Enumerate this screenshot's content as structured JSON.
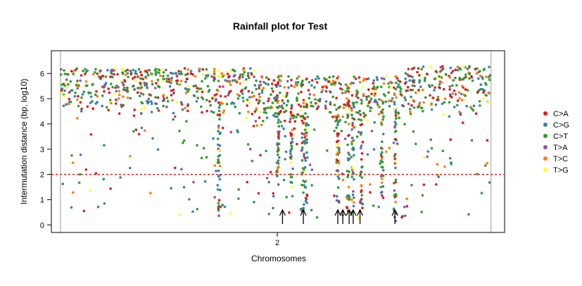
{
  "chart_data": {
    "type": "scatter",
    "title": "Rainfall plot for Test",
    "xlabel": "Chromosomes",
    "ylabel": "Intermutation distance (bp, log10)",
    "x_tick_labels": [
      "2"
    ],
    "y_ticks": [
      0,
      1,
      2,
      3,
      4,
      5,
      6
    ],
    "ylim": [
      -0.3,
      6.9
    ],
    "xlim": [
      0,
      1
    ],
    "threshold_line": 2,
    "chromosome_bounds": [
      0.02,
      0.97
    ],
    "kataegis_positions": [
      0.51,
      0.556,
      0.632,
      0.643,
      0.657,
      0.666,
      0.681,
      0.758
    ],
    "legend_position": "right",
    "series": [
      {
        "name": "C>A",
        "color": "#e41a1c"
      },
      {
        "name": "C>G",
        "color": "#377eb8"
      },
      {
        "name": "C>T",
        "color": "#2ca02c"
      },
      {
        "name": "T>A",
        "color": "#984ea3"
      },
      {
        "name": "T>C",
        "color": "#ff7f00"
      },
      {
        "name": "T>G",
        "color": "#ffff33"
      }
    ],
    "density_profile": {
      "segments": [
        {
          "x0": 0.02,
          "x1": 0.45,
          "ymin": 4.3,
          "ymax": 6.2
        },
        {
          "x0": 0.45,
          "x1": 0.78,
          "ymin": 3.6,
          "ymax": 5.9
        },
        {
          "x0": 0.78,
          "x1": 0.97,
          "ymin": 4.3,
          "ymax": 6.3
        }
      ],
      "vertical_streaks": [
        {
          "x": 0.37,
          "ymin": 0.3,
          "ymax": 5.0
        },
        {
          "x": 0.5,
          "ymin": 1.5,
          "ymax": 4.5
        },
        {
          "x": 0.53,
          "ymin": 1.5,
          "ymax": 4.8
        },
        {
          "x": 0.555,
          "ymin": 0.0,
          "ymax": 5.0
        },
        {
          "x": 0.562,
          "ymin": 0.8,
          "ymax": 5.0
        },
        {
          "x": 0.632,
          "ymin": 0.7,
          "ymax": 4.5
        },
        {
          "x": 0.655,
          "ymin": 0.5,
          "ymax": 5.0
        },
        {
          "x": 0.665,
          "ymin": 0.4,
          "ymax": 5.2
        },
        {
          "x": 0.684,
          "ymin": 0.3,
          "ymax": 5.0
        },
        {
          "x": 0.73,
          "ymin": 1.0,
          "ymax": 5.0
        },
        {
          "x": 0.758,
          "ymin": 0.0,
          "ymax": 5.2
        }
      ]
    }
  }
}
